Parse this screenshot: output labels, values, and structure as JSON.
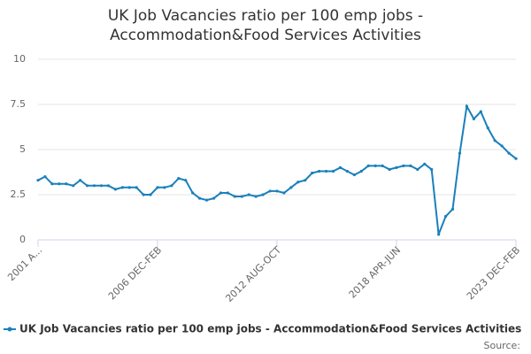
{
  "chart_data": {
    "type": "line",
    "title": [
      "UK Job Vacancies ratio per 100 emp jobs -",
      "Accommodation&Food Services Activities"
    ],
    "categories": [
      "2001 A...",
      null,
      null,
      null,
      null,
      null,
      null,
      null,
      null,
      null,
      null,
      null,
      null,
      null,
      null,
      null,
      null,
      "2006 DEC-FEB",
      null,
      null,
      null,
      null,
      null,
      null,
      null,
      null,
      null,
      null,
      null,
      null,
      null,
      null,
      null,
      null,
      "2012 AUG-OCT",
      null,
      null,
      null,
      null,
      null,
      null,
      null,
      null,
      null,
      null,
      null,
      null,
      null,
      null,
      null,
      null,
      "2018 APR-JUN",
      null,
      null,
      null,
      null,
      null,
      null,
      null,
      null,
      null,
      null,
      null,
      null,
      null,
      null,
      null,
      null,
      "2023 DEC-FEB"
    ],
    "series": [
      {
        "name": "UK Job Vacancies ratio per 100 emp jobs - Accommodation&Food Services Activities",
        "color": "#1a80bb",
        "values": [
          3.3,
          3.5,
          3.1,
          3.1,
          3.1,
          3.0,
          3.3,
          3.0,
          3.0,
          3.0,
          3.0,
          2.8,
          2.9,
          2.9,
          2.9,
          2.5,
          2.5,
          2.9,
          2.9,
          3.0,
          3.4,
          3.3,
          2.6,
          2.3,
          2.2,
          2.3,
          2.6,
          2.6,
          2.4,
          2.4,
          2.5,
          2.4,
          2.5,
          2.7,
          2.7,
          2.6,
          2.9,
          3.2,
          3.3,
          3.7,
          3.8,
          3.8,
          3.8,
          4.0,
          3.8,
          3.6,
          3.8,
          4.1,
          4.1,
          4.1,
          3.9,
          4.0,
          4.1,
          4.1,
          3.9,
          4.2,
          3.9,
          0.3,
          1.3,
          1.7,
          4.8,
          7.4,
          6.7,
          7.1,
          6.2,
          5.5,
          5.2,
          4.8,
          4.5
        ]
      }
    ],
    "ylim": [
      0,
      10
    ],
    "yticks": [
      0,
      2.5,
      5,
      7.5,
      10
    ],
    "grid": true,
    "source": "Source:"
  }
}
